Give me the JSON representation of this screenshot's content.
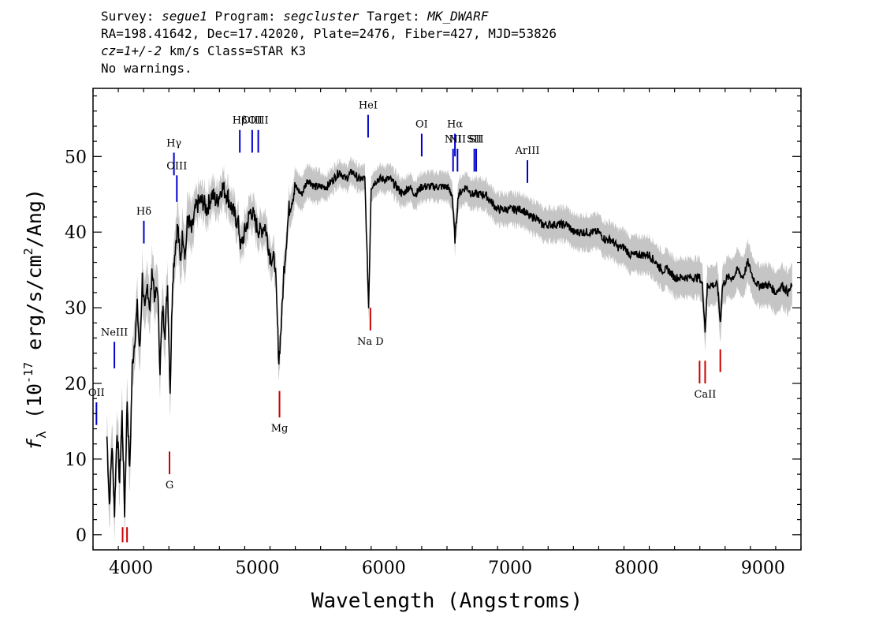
{
  "header": {
    "survey_label": "Survey:",
    "survey": "segue1",
    "program_label": "Program:",
    "program": "segcluster",
    "target_label": "Target:",
    "target": "MK_DWARF",
    "line2": "RA=198.41642, Dec=17.42020, Plate=2476, Fiber=427, MJD=53826",
    "cz": "cz=1+/-2",
    "cz_rest": " km/s Class=STAR K3",
    "line4": "No warnings."
  },
  "chart_data": {
    "type": "line",
    "title": "",
    "xlabel": "Wavelength (Angstroms)",
    "ylabel_prefix": "f",
    "ylabel_sub": "λ",
    "ylabel_main": " (10",
    "ylabel_sup": "-17",
    "ylabel_tail": " erg/s/cm",
    "ylabel_sup2": "2",
    "ylabel_end": "/Ang)",
    "xlim": [
      3700,
      9300
    ],
    "ylim": [
      -2,
      59
    ],
    "xticks": [
      4000,
      5000,
      6000,
      7000,
      8000,
      9000
    ],
    "yticks": [
      0,
      10,
      20,
      30,
      40,
      50
    ],
    "series": [
      {
        "color": "#000000",
        "error_color": "#bfbfbf",
        "points": [
          [
            3810,
            13
          ],
          [
            3830,
            4
          ],
          [
            3850,
            12
          ],
          [
            3870,
            3
          ],
          [
            3890,
            14
          ],
          [
            3910,
            7
          ],
          [
            3930,
            16
          ],
          [
            3950,
            3
          ],
          [
            3970,
            18
          ],
          [
            3990,
            8
          ],
          [
            4010,
            22
          ],
          [
            4030,
            26
          ],
          [
            4050,
            30
          ],
          [
            4070,
            24
          ],
          [
            4090,
            34
          ],
          [
            4110,
            29
          ],
          [
            4130,
            33
          ],
          [
            4150,
            30
          ],
          [
            4170,
            35
          ],
          [
            4190,
            31
          ],
          [
            4210,
            33
          ],
          [
            4230,
            22
          ],
          [
            4250,
            30
          ],
          [
            4270,
            27
          ],
          [
            4290,
            33
          ],
          [
            4310,
            19
          ],
          [
            4330,
            34
          ],
          [
            4350,
            38
          ],
          [
            4370,
            41
          ],
          [
            4390,
            36
          ],
          [
            4410,
            40
          ],
          [
            4430,
            37
          ],
          [
            4450,
            42
          ],
          [
            4480,
            40
          ],
          [
            4510,
            43
          ],
          [
            4540,
            44
          ],
          [
            4570,
            44
          ],
          [
            4600,
            43
          ],
          [
            4640,
            45
          ],
          [
            4680,
            44
          ],
          [
            4720,
            46
          ],
          [
            4760,
            45
          ],
          [
            4800,
            43
          ],
          [
            4850,
            41
          ],
          [
            4870,
            38
          ],
          [
            4900,
            40
          ],
          [
            4950,
            43
          ],
          [
            4990,
            41
          ],
          [
            5020,
            40
          ],
          [
            5060,
            41
          ],
          [
            5100,
            37
          ],
          [
            5140,
            36
          ],
          [
            5170,
            23
          ],
          [
            5190,
            28
          ],
          [
            5210,
            35
          ],
          [
            5250,
            43
          ],
          [
            5300,
            46
          ],
          [
            5350,
            45
          ],
          [
            5400,
            47
          ],
          [
            5450,
            46
          ],
          [
            5500,
            46
          ],
          [
            5550,
            46
          ],
          [
            5600,
            47
          ],
          [
            5650,
            48
          ],
          [
            5700,
            47
          ],
          [
            5750,
            48
          ],
          [
            5800,
            47
          ],
          [
            5850,
            47
          ],
          [
            5880,
            30
          ],
          [
            5900,
            46
          ],
          [
            5950,
            47
          ],
          [
            6000,
            47
          ],
          [
            6050,
            47
          ],
          [
            6100,
            46
          ],
          [
            6150,
            45
          ],
          [
            6200,
            46
          ],
          [
            6250,
            45
          ],
          [
            6300,
            46
          ],
          [
            6350,
            46
          ],
          [
            6400,
            46
          ],
          [
            6450,
            46
          ],
          [
            6500,
            46
          ],
          [
            6540,
            45
          ],
          [
            6563,
            39
          ],
          [
            6590,
            45
          ],
          [
            6650,
            46
          ],
          [
            6700,
            45
          ],
          [
            6750,
            45
          ],
          [
            6800,
            45
          ],
          [
            6850,
            44
          ],
          [
            6900,
            43
          ],
          [
            6950,
            43
          ],
          [
            7000,
            43
          ],
          [
            7050,
            43
          ],
          [
            7100,
            43
          ],
          [
            7150,
            42
          ],
          [
            7200,
            42
          ],
          [
            7250,
            41
          ],
          [
            7300,
            41
          ],
          [
            7350,
            41
          ],
          [
            7400,
            41
          ],
          [
            7450,
            41
          ],
          [
            7500,
            40
          ],
          [
            7550,
            40
          ],
          [
            7600,
            40
          ],
          [
            7650,
            40
          ],
          [
            7700,
            40
          ],
          [
            7750,
            39
          ],
          [
            7800,
            39
          ],
          [
            7850,
            38
          ],
          [
            7900,
            38
          ],
          [
            7950,
            37
          ],
          [
            8000,
            37
          ],
          [
            8050,
            37
          ],
          [
            8100,
            37
          ],
          [
            8150,
            36
          ],
          [
            8200,
            35
          ],
          [
            8250,
            35
          ],
          [
            8300,
            34
          ],
          [
            8350,
            34
          ],
          [
            8400,
            34
          ],
          [
            8450,
            34
          ],
          [
            8498,
            34
          ],
          [
            8520,
            33
          ],
          [
            8542,
            27
          ],
          [
            8560,
            33
          ],
          [
            8600,
            33
          ],
          [
            8640,
            33
          ],
          [
            8662,
            28
          ],
          [
            8680,
            33
          ],
          [
            8720,
            34
          ],
          [
            8760,
            34
          ],
          [
            8800,
            35
          ],
          [
            8840,
            34
          ],
          [
            8880,
            36
          ],
          [
            8920,
            34
          ],
          [
            8960,
            33
          ],
          [
            9000,
            33
          ],
          [
            9050,
            33
          ],
          [
            9100,
            32
          ],
          [
            9150,
            33
          ],
          [
            9200,
            32
          ],
          [
            9230,
            33
          ]
        ]
      }
    ],
    "emission_lines": [
      {
        "label": "OII",
        "x": 3727,
        "y0": 14.5,
        "y1": 17.5
      },
      {
        "label": "NeIII",
        "x": 3869,
        "y0": 22,
        "y1": 25.5
      },
      {
        "label": "Hδ",
        "x": 4102,
        "y0": 38.5,
        "y1": 41.5
      },
      {
        "label": "Hγ",
        "x": 4340,
        "y0": 47.5,
        "y1": 50.5
      },
      {
        "label": "OIII",
        "x": 4363,
        "y0": 44,
        "y1": 47.5
      },
      {
        "label": "Hβ",
        "x": 4861,
        "y0": 50.5,
        "y1": 53.5
      },
      {
        "label": "OIII",
        "x": 4959,
        "y0": 50.5,
        "y1": 53.5
      },
      {
        "label": "OIII",
        "x": 5007,
        "y0": 50.5,
        "y1": 53.5
      },
      {
        "label": "HeI",
        "x": 5876,
        "y0": 52.5,
        "y1": 55.5
      },
      {
        "label": "OI",
        "x": 6300,
        "y0": 50,
        "y1": 53
      },
      {
        "label": "NII",
        "x": 6548,
        "y0": 48,
        "y1": 51
      },
      {
        "label": "Hα",
        "x": 6563,
        "y0": 50,
        "y1": 53
      },
      {
        "label": "NII",
        "x": 6583,
        "y0": 48,
        "y1": 51
      },
      {
        "label": "SII",
        "x": 6716,
        "y0": 48,
        "y1": 51
      },
      {
        "label": "SII",
        "x": 6731,
        "y0": 48,
        "y1": 51
      },
      {
        "label": "ArIII",
        "x": 7136,
        "y0": 46.5,
        "y1": 49.5
      }
    ],
    "absorption_lines": [
      {
        "label": "",
        "x": 3934,
        "y0": -1,
        "y1": 1
      },
      {
        "label": "",
        "x": 3969,
        "y0": -1,
        "y1": 1
      },
      {
        "label": "G",
        "x": 4305,
        "y0": 8,
        "y1": 11
      },
      {
        "label": "Mg",
        "x": 5175,
        "y0": 15.5,
        "y1": 19
      },
      {
        "label": "Na D",
        "x": 5894,
        "y0": 27,
        "y1": 30
      },
      {
        "label": "",
        "x": 8498,
        "y0": 20,
        "y1": 23
      },
      {
        "label": "CaII",
        "x": 8542,
        "y0": 20,
        "y1": 23
      },
      {
        "label": "",
        "x": 8662,
        "y0": 21.5,
        "y1": 24.5
      }
    ],
    "line_colors": {
      "emission": "#0000cc",
      "absorption": "#cc0000"
    }
  }
}
